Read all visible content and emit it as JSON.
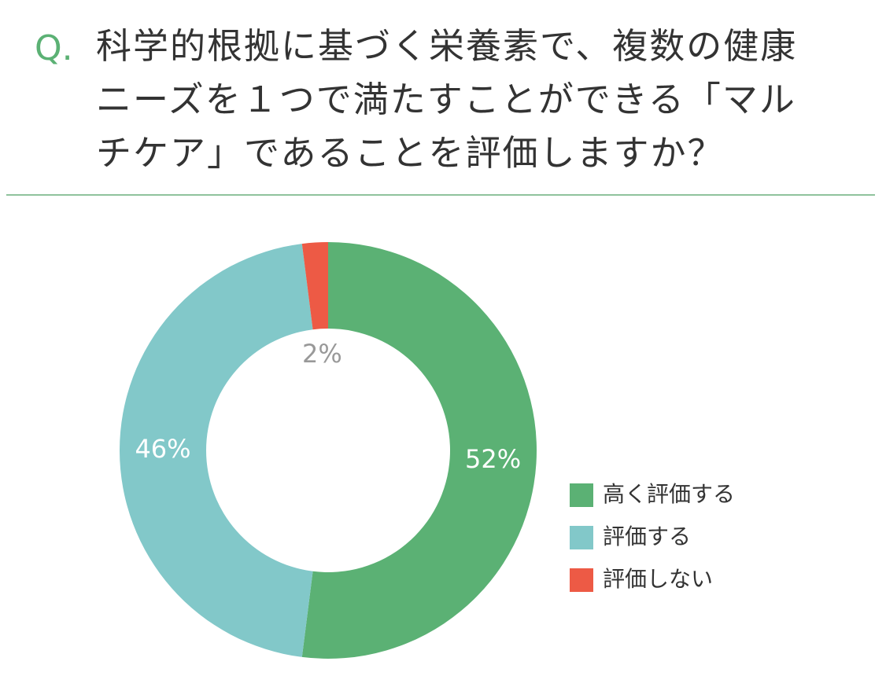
{
  "chart_data": {
    "type": "donut",
    "title_prefix": "Q.",
    "title": "科学的根拠に基づく栄養素で、複数の健康ニーズを１つで満たすことができる「マルチケア」であることを評価しますか？",
    "categories": [
      "高く評価する",
      "評価する",
      "評価しない"
    ],
    "values": [
      52,
      46,
      2
    ],
    "value_labels": [
      "52%",
      "46%",
      "2%"
    ],
    "colors": [
      "#5bb174",
      "#82c8c9",
      "#ed5a45"
    ],
    "legend": "right"
  }
}
